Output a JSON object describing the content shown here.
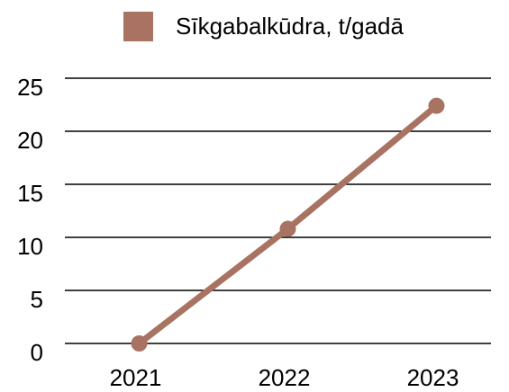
{
  "chart_data": {
    "type": "line",
    "categories": [
      "2021",
      "2022",
      "2023"
    ],
    "series": [
      {
        "name": "Sīkgabalkūdra, t/gadā",
        "color": "#a87362",
        "values": [
          0,
          10.8,
          22.4
        ]
      }
    ],
    "ylim": [
      0,
      25
    ],
    "yticks": [
      0,
      5,
      10,
      15,
      20,
      25
    ],
    "grid": true,
    "legend": "top"
  }
}
